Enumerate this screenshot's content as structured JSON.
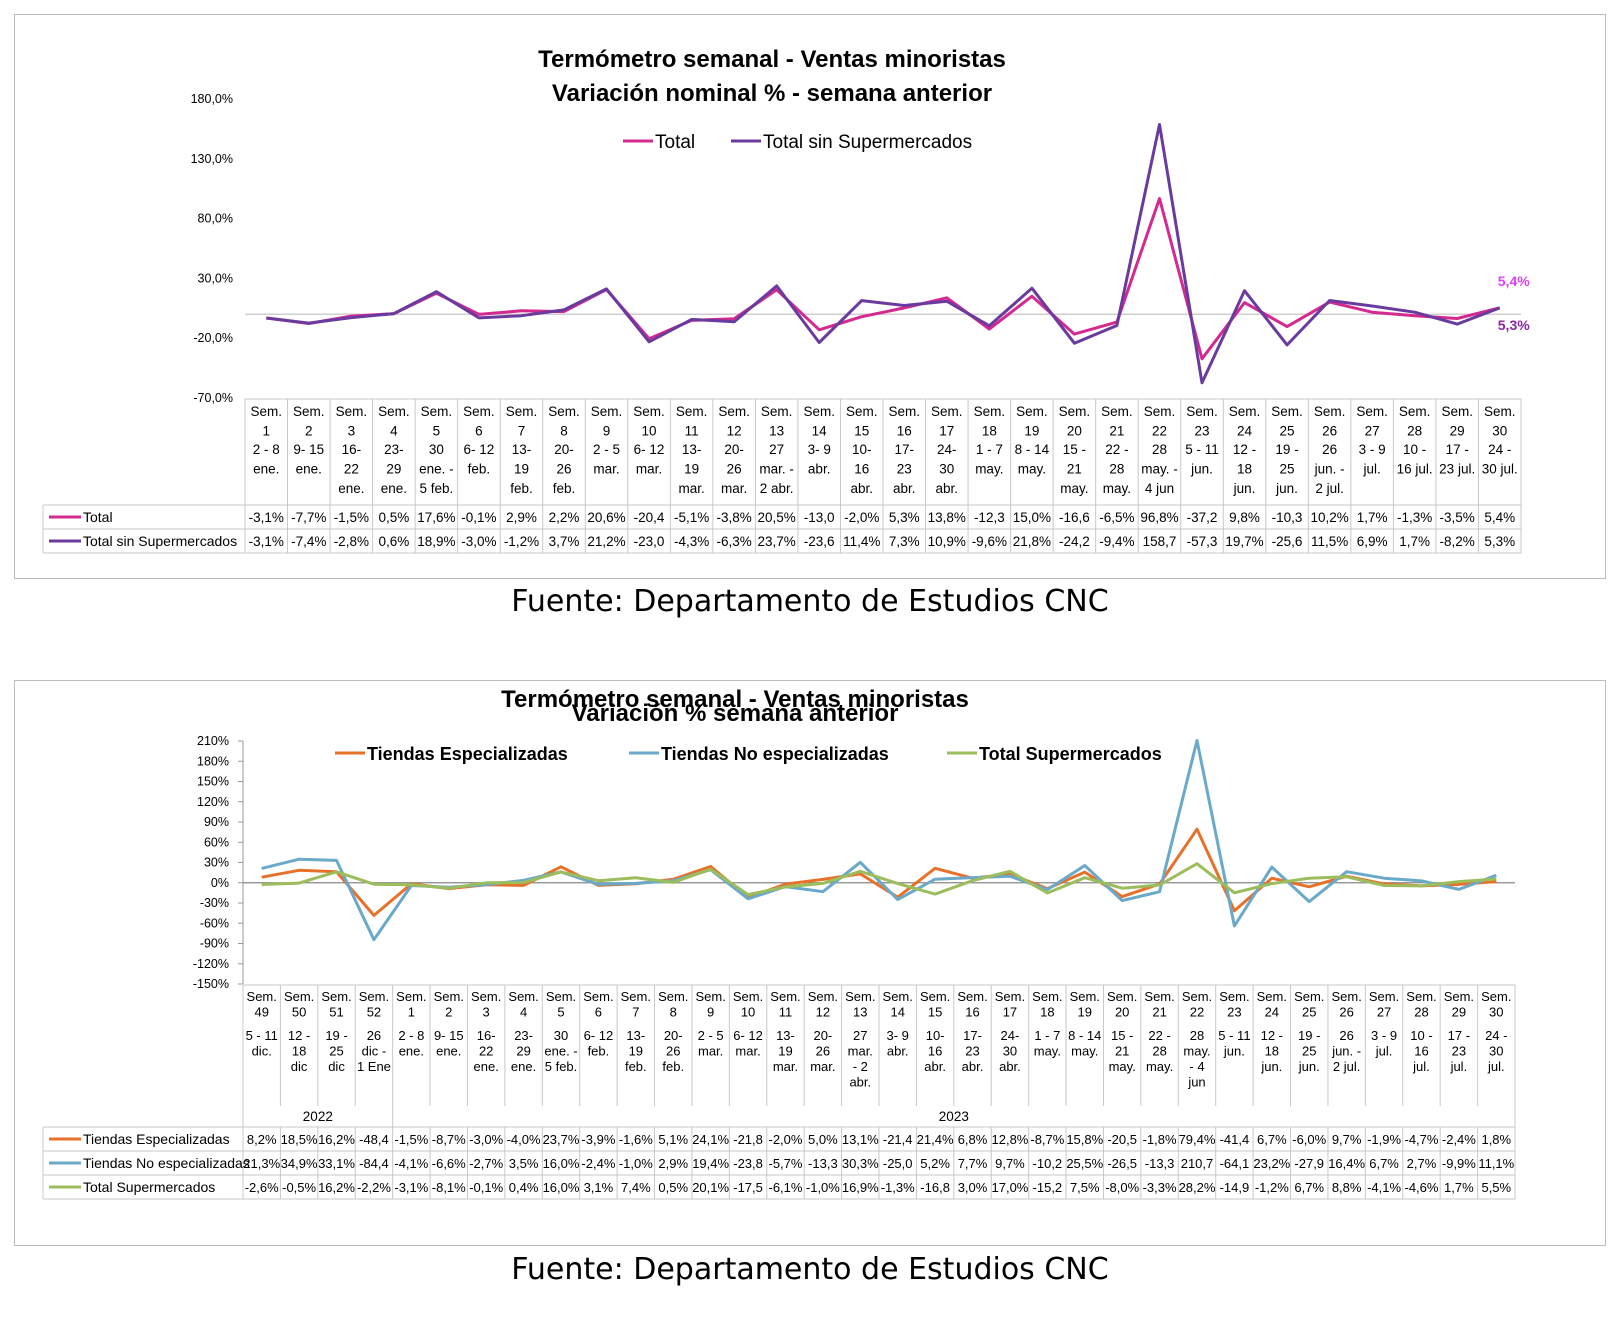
{
  "chart_data": [
    {
      "type": "line",
      "title_line1": "Termómetro semanal - Ventas minoristas",
      "title_line2": "Variación nominal % - semana anterior",
      "legend_position": "top",
      "ylim": [
        -70,
        180
      ],
      "yticks": [
        "180,0%",
        "130,0%",
        "80,0%",
        "30,0%",
        "-20,0%",
        "-70,0%"
      ],
      "categories": [
        {
          "sem": [
            "Sem.",
            "1"
          ],
          "range": [
            "2 - 8",
            "ene."
          ]
        },
        {
          "sem": [
            "Sem.",
            "2"
          ],
          "range": [
            "9- 15",
            "ene."
          ]
        },
        {
          "sem": [
            "Sem.",
            "3"
          ],
          "range": [
            "16-",
            "22",
            "ene."
          ]
        },
        {
          "sem": [
            "Sem.",
            "4"
          ],
          "range": [
            "23-",
            "29",
            "ene."
          ]
        },
        {
          "sem": [
            "Sem.",
            "5"
          ],
          "range": [
            "30",
            "ene. -",
            "5 feb."
          ]
        },
        {
          "sem": [
            "Sem.",
            "6"
          ],
          "range": [
            "6- 12",
            "feb."
          ]
        },
        {
          "sem": [
            "Sem.",
            "7"
          ],
          "range": [
            "13-",
            "19",
            "feb."
          ]
        },
        {
          "sem": [
            "Sem.",
            "8"
          ],
          "range": [
            "20-",
            "26",
            "feb."
          ]
        },
        {
          "sem": [
            "Sem.",
            "9"
          ],
          "range": [
            "2 - 5",
            "mar."
          ]
        },
        {
          "sem": [
            "Sem.",
            "10"
          ],
          "range": [
            "6- 12",
            "mar."
          ]
        },
        {
          "sem": [
            "Sem.",
            "11"
          ],
          "range": [
            "13-",
            "19",
            "mar."
          ]
        },
        {
          "sem": [
            "Sem.",
            "12"
          ],
          "range": [
            "20-",
            "26",
            "mar."
          ]
        },
        {
          "sem": [
            "Sem.",
            "13"
          ],
          "range": [
            "27",
            "mar. -",
            "2 abr."
          ]
        },
        {
          "sem": [
            "Sem.",
            "14"
          ],
          "range": [
            "3- 9",
            "abr."
          ]
        },
        {
          "sem": [
            "Sem.",
            "15"
          ],
          "range": [
            "10-",
            "16",
            "abr."
          ]
        },
        {
          "sem": [
            "Sem.",
            "16"
          ],
          "range": [
            "17-",
            "23",
            "abr."
          ]
        },
        {
          "sem": [
            "Sem.",
            "17"
          ],
          "range": [
            "24-",
            "30",
            "abr."
          ]
        },
        {
          "sem": [
            "Sem.",
            "18"
          ],
          "range": [
            "1 - 7",
            "may."
          ]
        },
        {
          "sem": [
            "Sem.",
            "19"
          ],
          "range": [
            "8 - 14",
            "may."
          ]
        },
        {
          "sem": [
            "Sem.",
            "20"
          ],
          "range": [
            "15 -",
            "21",
            "may."
          ]
        },
        {
          "sem": [
            "Sem.",
            "21"
          ],
          "range": [
            "22 -",
            "28",
            "may."
          ]
        },
        {
          "sem": [
            "Sem.",
            "22"
          ],
          "range": [
            "28",
            "may. -",
            "4 jun"
          ]
        },
        {
          "sem": [
            "Sem.",
            "23"
          ],
          "range": [
            "5 - 11",
            "jun."
          ]
        },
        {
          "sem": [
            "Sem.",
            "24"
          ],
          "range": [
            "12 -",
            "18",
            "jun."
          ]
        },
        {
          "sem": [
            "Sem.",
            "25"
          ],
          "range": [
            "19 -",
            "25",
            "jun."
          ]
        },
        {
          "sem": [
            "Sem.",
            "26"
          ],
          "range": [
            "26",
            "jun. -",
            "2 jul."
          ]
        },
        {
          "sem": [
            "Sem.",
            "27"
          ],
          "range": [
            "3 - 9",
            "jul."
          ]
        },
        {
          "sem": [
            "Sem.",
            "28"
          ],
          "range": [
            "10 -",
            "16 jul."
          ]
        },
        {
          "sem": [
            "Sem.",
            "29"
          ],
          "range": [
            "17 -",
            "23 jul."
          ]
        },
        {
          "sem": [
            "Sem.",
            "30"
          ],
          "range": [
            "24 -",
            "30 jul."
          ]
        }
      ],
      "series": [
        {
          "name": "Total",
          "color": "#d4298f",
          "values": [
            -3.1,
            -7.7,
            -1.5,
            0.5,
            17.6,
            -0.1,
            2.9,
            2.2,
            20.6,
            -20.4,
            -5.1,
            -3.8,
            20.5,
            -13.0,
            -2.0,
            5.3,
            13.8,
            -12.3,
            15.0,
            -16.6,
            -6.5,
            96.8,
            -37.2,
            9.8,
            -10.3,
            10.2,
            1.7,
            -1.3,
            -3.5,
            5.4
          ],
          "labels": [
            "-3,1%",
            "-7,7%",
            "-1,5%",
            "0,5%",
            "17,6%",
            "-0,1%",
            "2,9%",
            "2,2%",
            "20,6%",
            "-20,4",
            "-5,1%",
            "-3,8%",
            "20,5%",
            "-13,0",
            "-2,0%",
            "5,3%",
            "13,8%",
            "-12,3",
            "15,0%",
            "-16,6",
            "-6,5%",
            "96,8%",
            "-37,2",
            "9,8%",
            "-10,3",
            "10,2%",
            "1,7%",
            "-1,3%",
            "-3,5%",
            "5,4%"
          ]
        },
        {
          "name": "Total sin Supermercados",
          "color": "#6a3b9e",
          "values": [
            -3.1,
            -7.4,
            -2.8,
            0.6,
            18.9,
            -3.0,
            -1.2,
            3.7,
            21.2,
            -23.0,
            -4.3,
            -6.3,
            23.7,
            -23.6,
            11.4,
            7.3,
            10.9,
            -9.6,
            21.8,
            -24.2,
            -9.4,
            158.7,
            -57.3,
            19.7,
            -25.6,
            11.5,
            6.9,
            1.7,
            -8.2,
            5.3
          ],
          "labels": [
            "-3,1%",
            "-7,4%",
            "-2,8%",
            "0,6%",
            "18,9%",
            "-3,0%",
            "-1,2%",
            "3,7%",
            "21,2%",
            "-23,0",
            "-4,3%",
            "-6,3%",
            "23,7%",
            "-23,6",
            "11,4%",
            "7,3%",
            "10,9%",
            "-9,6%",
            "21,8%",
            "-24,2",
            "-9,4%",
            "158,7",
            "-57,3",
            "19,7%",
            "-25,6",
            "11,5%",
            "6,9%",
            "1,7%",
            "-8,2%",
            "5,3%"
          ]
        }
      ],
      "end_labels": [
        {
          "text": "5,4%",
          "color": "#e040fb"
        },
        {
          "text": "5,3%",
          "color": "#8e24aa"
        }
      ],
      "source": "Fuente: Departamento de Estudios CNC"
    },
    {
      "type": "line",
      "title_line1": "Termómetro semanal - Ventas minoristas",
      "title_line2": "Variación % semana anterior",
      "legend_position": "top",
      "ylim": [
        -150,
        210
      ],
      "yticks": [
        "210%",
        "180%",
        "150%",
        "120%",
        "90%",
        "60%",
        "30%",
        "0%",
        "-30%",
        "-60%",
        "-90%",
        "-120%",
        "-150%"
      ],
      "years": [
        {
          "label": "2022",
          "from": 0,
          "to": 3
        },
        {
          "label": "2023",
          "from": 4,
          "to": 33
        }
      ],
      "categories": [
        {
          "sem": [
            "Sem.",
            "49"
          ],
          "range": [
            "5 - 11",
            "dic."
          ]
        },
        {
          "sem": [
            "Sem.",
            "50"
          ],
          "range": [
            "12 -",
            "18",
            "dic"
          ]
        },
        {
          "sem": [
            "Sem.",
            "51"
          ],
          "range": [
            "19 -",
            "25",
            "dic"
          ]
        },
        {
          "sem": [
            "Sem.",
            "52"
          ],
          "range": [
            "26",
            "dic -",
            "1 Ene"
          ]
        },
        {
          "sem": [
            "Sem.",
            "1"
          ],
          "range": [
            "2 - 8",
            "ene."
          ]
        },
        {
          "sem": [
            "Sem.",
            "2"
          ],
          "range": [
            "9- 15",
            "ene."
          ]
        },
        {
          "sem": [
            "Sem.",
            "3"
          ],
          "range": [
            "16-",
            "22",
            "ene."
          ]
        },
        {
          "sem": [
            "Sem.",
            "4"
          ],
          "range": [
            "23-",
            "29",
            "ene."
          ]
        },
        {
          "sem": [
            "Sem.",
            "5"
          ],
          "range": [
            "30",
            "ene. -",
            "5 feb."
          ]
        },
        {
          "sem": [
            "Sem.",
            "6"
          ],
          "range": [
            "6- 12",
            "feb."
          ]
        },
        {
          "sem": [
            "Sem.",
            "7"
          ],
          "range": [
            "13-",
            "19",
            "feb."
          ]
        },
        {
          "sem": [
            "Sem.",
            "8"
          ],
          "range": [
            "20-",
            "26",
            "feb."
          ]
        },
        {
          "sem": [
            "Sem.",
            "9"
          ],
          "range": [
            "2 - 5",
            "mar."
          ]
        },
        {
          "sem": [
            "Sem.",
            "10"
          ],
          "range": [
            "6- 12",
            "mar."
          ]
        },
        {
          "sem": [
            "Sem.",
            "11"
          ],
          "range": [
            "13-",
            "19",
            "mar."
          ]
        },
        {
          "sem": [
            "Sem.",
            "12"
          ],
          "range": [
            "20-",
            "26",
            "mar."
          ]
        },
        {
          "sem": [
            "Sem.",
            "13"
          ],
          "range": [
            "27",
            "mar.",
            "- 2",
            "abr."
          ]
        },
        {
          "sem": [
            "Sem.",
            "14"
          ],
          "range": [
            "3- 9",
            "abr."
          ]
        },
        {
          "sem": [
            "Sem.",
            "15"
          ],
          "range": [
            "10-",
            "16",
            "abr."
          ]
        },
        {
          "sem": [
            "Sem.",
            "16"
          ],
          "range": [
            "17-",
            "23",
            "abr."
          ]
        },
        {
          "sem": [
            "Sem.",
            "17"
          ],
          "range": [
            "24-",
            "30",
            "abr."
          ]
        },
        {
          "sem": [
            "Sem.",
            "18"
          ],
          "range": [
            "1 - 7",
            "may."
          ]
        },
        {
          "sem": [
            "Sem.",
            "19"
          ],
          "range": [
            "8 - 14",
            "may."
          ]
        },
        {
          "sem": [
            "Sem.",
            "20"
          ],
          "range": [
            "15 -",
            "21",
            "may."
          ]
        },
        {
          "sem": [
            "Sem.",
            "21"
          ],
          "range": [
            "22 -",
            "28",
            "may."
          ]
        },
        {
          "sem": [
            "Sem.",
            "22"
          ],
          "range": [
            "28",
            "may.",
            "- 4",
            "jun"
          ]
        },
        {
          "sem": [
            "Sem.",
            "23"
          ],
          "range": [
            "5 - 11",
            "jun."
          ]
        },
        {
          "sem": [
            "Sem.",
            "24"
          ],
          "range": [
            "12 -",
            "18",
            "jun."
          ]
        },
        {
          "sem": [
            "Sem.",
            "25"
          ],
          "range": [
            "19 -",
            "25",
            "jun."
          ]
        },
        {
          "sem": [
            "Sem.",
            "26"
          ],
          "range": [
            "26",
            "jun. -",
            "2 jul."
          ]
        },
        {
          "sem": [
            "Sem.",
            "27"
          ],
          "range": [
            "3 - 9",
            "jul."
          ]
        },
        {
          "sem": [
            "Sem.",
            "28"
          ],
          "range": [
            "10 -",
            "16",
            "jul."
          ]
        },
        {
          "sem": [
            "Sem.",
            "29"
          ],
          "range": [
            "17 -",
            "23",
            "jul."
          ]
        },
        {
          "sem": [
            "Sem.",
            "30"
          ],
          "range": [
            "24 -",
            "30",
            "jul."
          ]
        }
      ],
      "series": [
        {
          "name": "Tiendas Especializadas",
          "color": "#e8712a",
          "values": [
            8.2,
            18.5,
            16.2,
            -48.4,
            -1.5,
            -8.7,
            -3.0,
            -4.0,
            23.7,
            -3.9,
            -1.6,
            5.1,
            24.1,
            -21.8,
            -2.0,
            5.0,
            13.1,
            -21.4,
            21.4,
            6.8,
            12.8,
            -8.7,
            15.8,
            -20.5,
            -1.8,
            79.4,
            -41.4,
            6.7,
            -6.0,
            9.7,
            -1.9,
            -4.7,
            -2.4,
            1.8
          ],
          "labels": [
            "8,2%",
            "18,5%",
            "16,2%",
            "-48,4",
            "-1,5%",
            "-8,7%",
            "-3,0%",
            "-4,0%",
            "23,7%",
            "-3,9%",
            "-1,6%",
            "5,1%",
            "24,1%",
            "-21,8",
            "-2,0%",
            "5,0%",
            "13,1%",
            "-21,4",
            "21,4%",
            "6,8%",
            "12,8%",
            "-8,7%",
            "15,8%",
            "-20,5",
            "-1,8%",
            "79,4%",
            "-41,4",
            "6,7%",
            "-6,0%",
            "9,7%",
            "-1,9%",
            "-4,7%",
            "-2,4%",
            "1,8%"
          ]
        },
        {
          "name": "Tiendas No especializadas",
          "color": "#6aa9c9",
          "values": [
            21.3,
            34.9,
            33.1,
            -84.4,
            -4.1,
            -6.6,
            -2.7,
            3.5,
            16.0,
            -2.4,
            -1.0,
            2.9,
            19.4,
            -23.8,
            -5.7,
            -13.3,
            30.3,
            -25.0,
            5.2,
            7.7,
            9.7,
            -10.2,
            25.5,
            -26.5,
            -13.3,
            210.7,
            -64.1,
            23.2,
            -27.9,
            16.4,
            6.7,
            2.7,
            -9.9,
            11.1
          ],
          "labels": [
            "21,3%",
            "34,9%",
            "33,1%",
            "-84,4",
            "-4,1%",
            "-6,6%",
            "-2,7%",
            "3,5%",
            "16,0%",
            "-2,4%",
            "-1,0%",
            "2,9%",
            "19,4%",
            "-23,8",
            "-5,7%",
            "-13,3",
            "30,3%",
            "-25,0",
            "5,2%",
            "7,7%",
            "9,7%",
            "-10,2",
            "25,5%",
            "-26,5",
            "-13,3",
            "210,7",
            "-64,1",
            "23,2%",
            "-27,9",
            "16,4%",
            "6,7%",
            "2,7%",
            "-9,9%",
            "11,1%"
          ]
        },
        {
          "name": "Total Supermercados",
          "color": "#9cbd5c",
          "values": [
            -2.6,
            -0.5,
            16.2,
            -2.2,
            -3.1,
            -8.1,
            -0.1,
            0.4,
            16.0,
            3.1,
            7.4,
            0.5,
            20.1,
            -17.5,
            -6.1,
            -1.0,
            16.9,
            -1.3,
            -16.8,
            3.0,
            17.0,
            -15.2,
            7.5,
            -8.0,
            -3.3,
            28.2,
            -14.9,
            -1.2,
            6.7,
            8.8,
            -4.1,
            -4.6,
            1.7,
            5.5
          ],
          "labels": [
            "-2,6%",
            "-0,5%",
            "16,2%",
            "-2,2%",
            "-3,1%",
            "-8,1%",
            "-0,1%",
            "0,4%",
            "16,0%",
            "3,1%",
            "7,4%",
            "0,5%",
            "20,1%",
            "-17,5",
            "-6,1%",
            "-1,0%",
            "16,9%",
            "-1,3%",
            "-16,8",
            "3,0%",
            "17,0%",
            "-15,2",
            "7,5%",
            "-8,0%",
            "-3,3%",
            "28,2%",
            "-14,9",
            "-1,2%",
            "6,7%",
            "8,8%",
            "-4,1%",
            "-4,6%",
            "1,7%",
            "5,5%"
          ]
        }
      ],
      "source": "Fuente: Departamento de Estudios CNC"
    }
  ]
}
